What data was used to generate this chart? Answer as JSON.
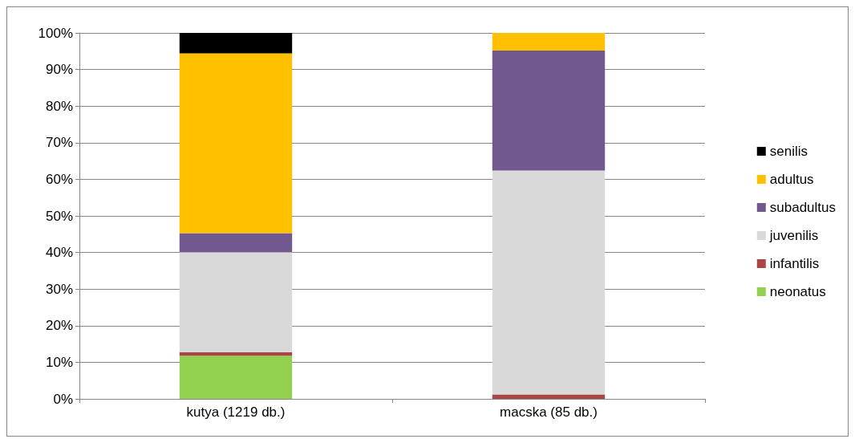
{
  "chart_data": {
    "type": "bar",
    "stacked": true,
    "categories": [
      "kutya (1219 db.)",
      "macska (85 db.)"
    ],
    "series": [
      {
        "name": "neonatus",
        "color": "#92d050",
        "values": [
          11.8,
          0
        ]
      },
      {
        "name": "infantilis",
        "color": "#aa4643",
        "values": [
          1.0,
          1.2
        ]
      },
      {
        "name": "juvenilis",
        "color": "#d9d9d9",
        "values": [
          27.3,
          61.2
        ]
      },
      {
        "name": "subadultus",
        "color": "#71588f",
        "values": [
          5.2,
          32.8
        ]
      },
      {
        "name": "adultus",
        "color": "#ffc000",
        "values": [
          49.1,
          4.8
        ]
      },
      {
        "name": "senilis",
        "color": "#000000",
        "values": [
          5.6,
          0
        ]
      }
    ],
    "ylim": [
      0,
      100
    ],
    "yticks": [
      {
        "value": 0,
        "label": "0%"
      },
      {
        "value": 10,
        "label": "10%"
      },
      {
        "value": 20,
        "label": "20%"
      },
      {
        "value": 30,
        "label": "30%"
      },
      {
        "value": 40,
        "label": "40%"
      },
      {
        "value": 50,
        "label": "50%"
      },
      {
        "value": 60,
        "label": "60%"
      },
      {
        "value": 70,
        "label": "70%"
      },
      {
        "value": 80,
        "label": "80%"
      },
      {
        "value": 90,
        "label": "90%"
      },
      {
        "value": 100,
        "label": "100%"
      }
    ],
    "grid": "y",
    "legend": "right"
  }
}
